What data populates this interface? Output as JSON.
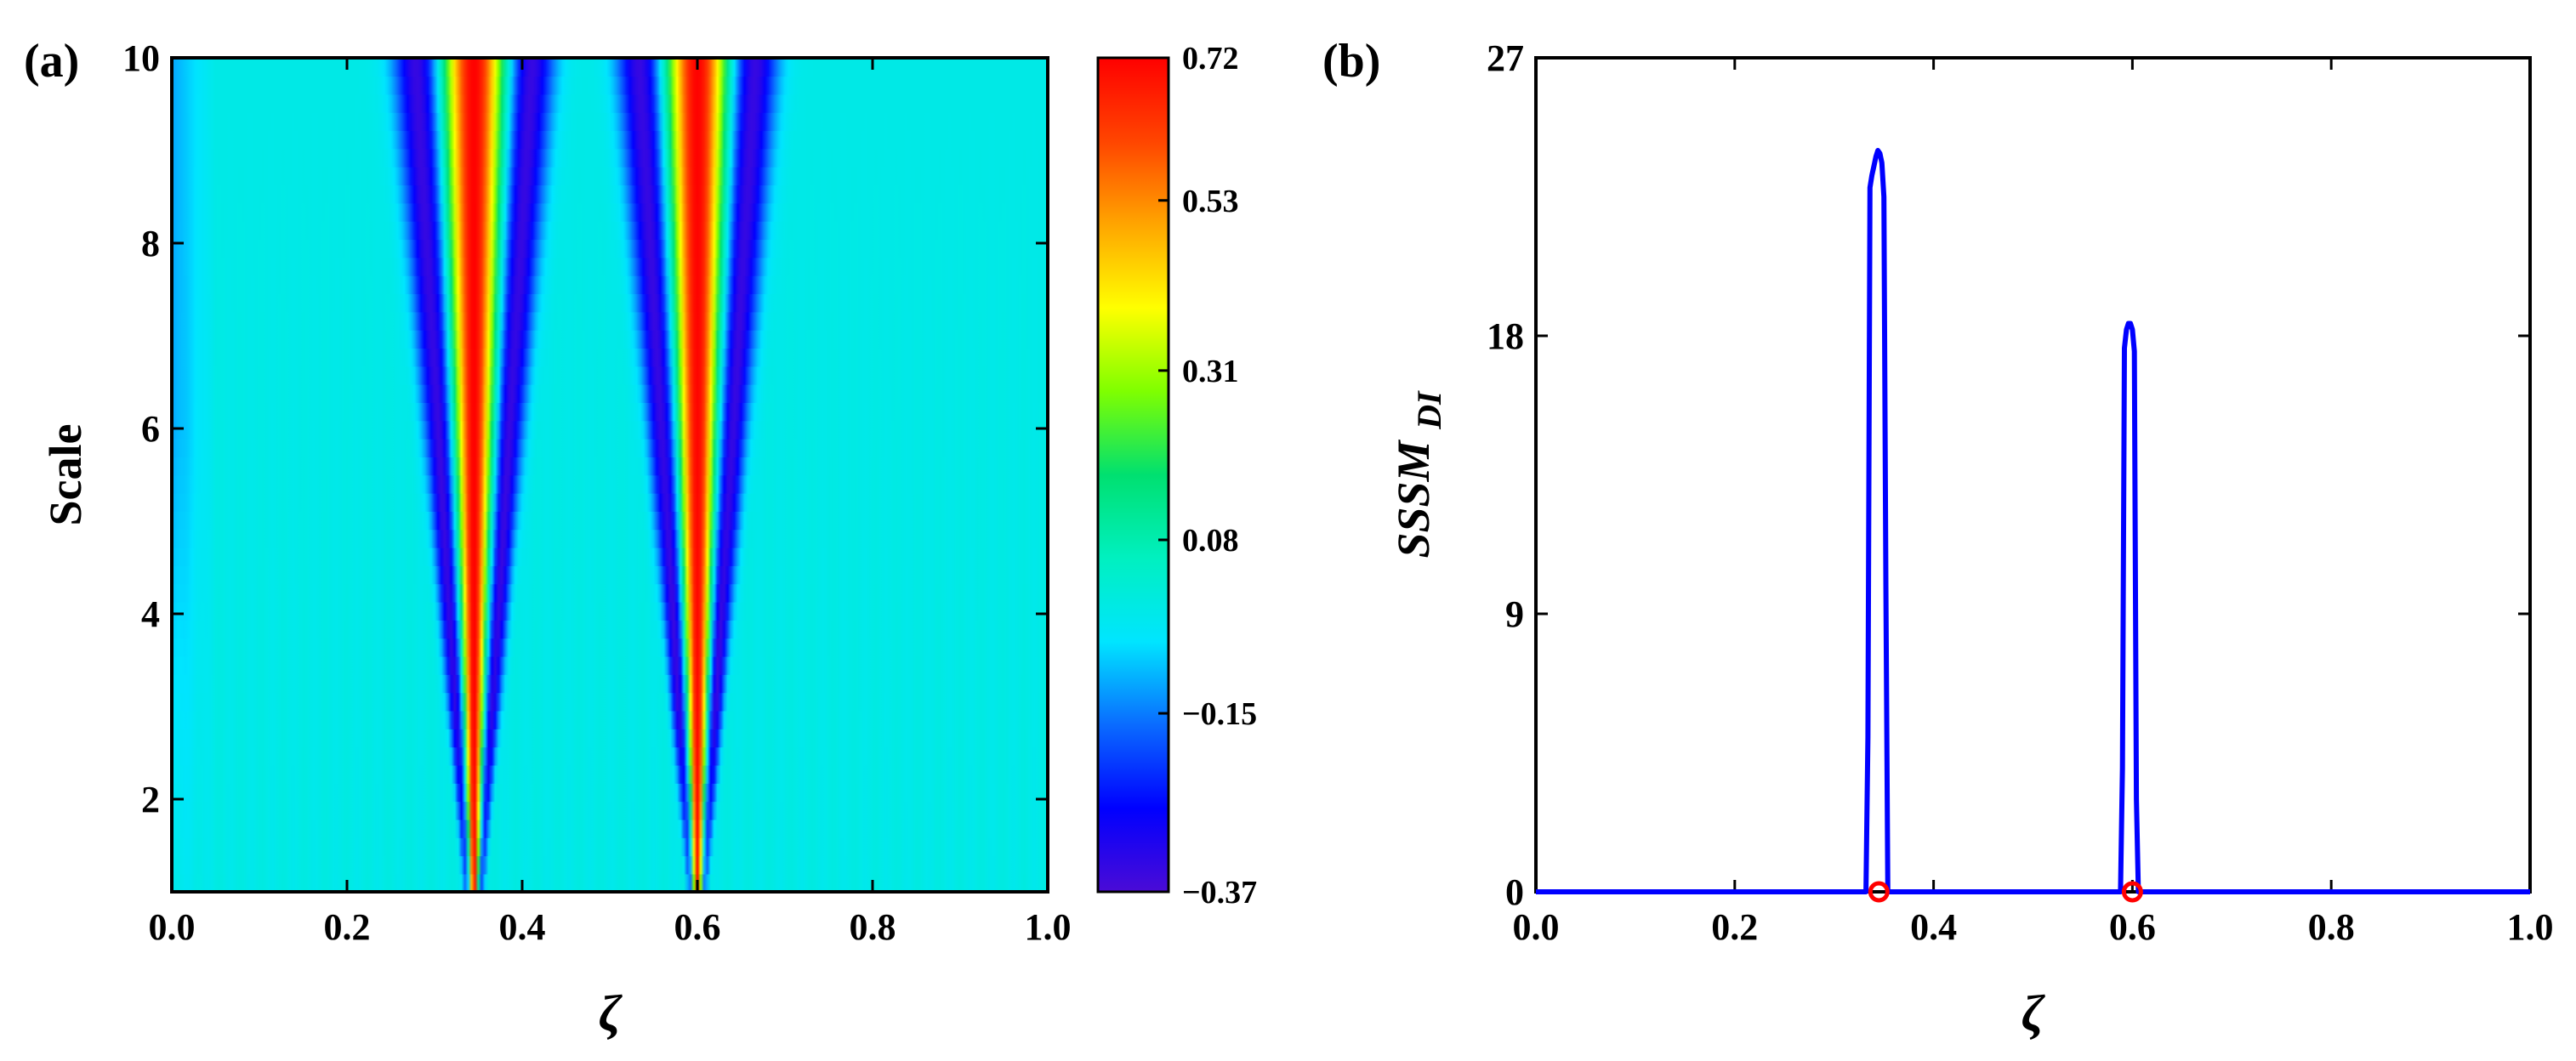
{
  "chart_data": [
    {
      "panel": "(a)",
      "type": "heatmap",
      "xlabel": "ζ",
      "ylabel": "Scale",
      "xlim": [
        0.0,
        1.0
      ],
      "ylim": [
        1,
        10
      ],
      "xticks": [
        "0.0",
        "0.2",
        "0.4",
        "0.6",
        "0.8",
        "1.0"
      ],
      "yticks": [
        "2",
        "4",
        "6",
        "8",
        "10"
      ],
      "colorbar": {
        "range": [
          -0.37,
          0.72
        ],
        "ticks": [
          "0.72",
          "0.53",
          "0.31",
          "0.08",
          "−0.15",
          "−0.37"
        ],
        "colormap": [
          "#4b0bd6",
          "#0000ff",
          "#0a6bff",
          "#00e5ff",
          "#00f0c0",
          "#00e070",
          "#7fff00",
          "#ffff00",
          "#ffa500",
          "#ff4500",
          "#ff0000"
        ]
      },
      "background_value": 0.0,
      "features": [
        {
          "center": 0.345,
          "peak": 0.72,
          "trough": -0.37
        },
        {
          "center": 0.6,
          "peak": 0.72,
          "trough": -0.37
        }
      ]
    },
    {
      "panel": "(b)",
      "type": "line",
      "xlabel": "ζ",
      "ylabel": "SSSM",
      "ylabel_sub": "DI",
      "xlim": [
        0.0,
        1.0
      ],
      "ylim": [
        0,
        27
      ],
      "xticks": [
        "0.0",
        "0.2",
        "0.4",
        "0.6",
        "0.8",
        "1.0"
      ],
      "yticks": [
        "0",
        "9",
        "18",
        "27"
      ],
      "series": [
        {
          "color": "#0000ff",
          "x": [
            0.0,
            0.332,
            0.334,
            0.336,
            0.338,
            0.34,
            0.342,
            0.344,
            0.346,
            0.348,
            0.35,
            0.352,
            0.354,
            0.356,
            0.588,
            0.59,
            0.592,
            0.594,
            0.596,
            0.598,
            0.6,
            0.602,
            0.604,
            0.606,
            1.0
          ],
          "y": [
            0,
            0,
            5,
            22.8,
            23.2,
            23.5,
            23.8,
            24.0,
            23.9,
            23.6,
            22.5,
            10,
            0,
            0,
            0,
            4,
            17.6,
            18.2,
            18.4,
            18.4,
            18.2,
            17.5,
            3,
            0,
            0
          ]
        }
      ],
      "markers": [
        {
          "x": 0.345,
          "y": 0,
          "color": "#ff0000",
          "shape": "open-circle"
        },
        {
          "x": 0.6,
          "y": 0,
          "color": "#ff0000",
          "shape": "open-circle"
        }
      ]
    }
  ],
  "panel_a": {
    "label": "(a)"
  },
  "panel_b": {
    "label": "(b)"
  }
}
